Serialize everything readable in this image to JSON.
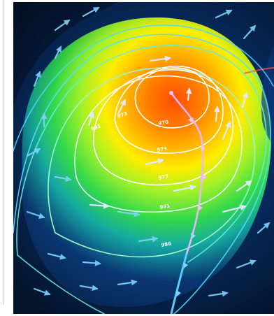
{
  "map": {
    "colors": {
      "low_center": "#ff5a00",
      "core": "#ff9a00",
      "mid": "#ffe600",
      "outer": "#39e83a",
      "edge": "#1fb5a8",
      "ocean": "#0a3a78",
      "isobar_inner": "#f7f7ff",
      "isobar_outer": "#65e9ff",
      "front": "#e9b6ff",
      "arrows": "#dfe8ff"
    },
    "isobar_labels": [
      {
        "text": "970"
      },
      {
        "text": "973"
      },
      {
        "text": "977"
      },
      {
        "text": "981"
      },
      {
        "text": "986"
      },
      {
        "text": "973"
      },
      {
        "text": "981"
      }
    ]
  }
}
